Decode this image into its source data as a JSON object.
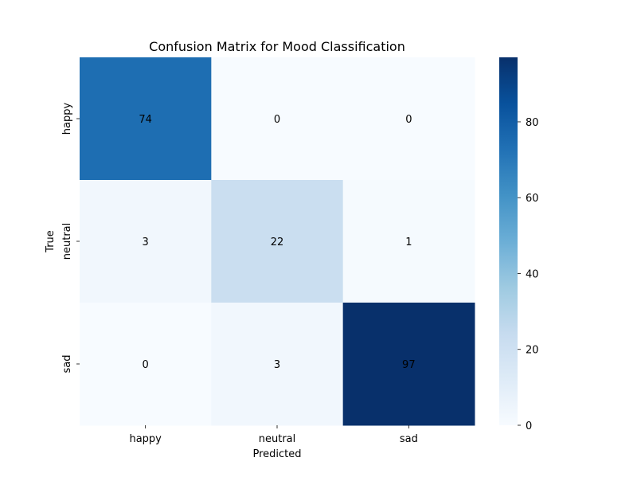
{
  "chart_data": {
    "type": "heatmap",
    "title": "Confusion Matrix for Mood Classification",
    "xlabel": "Predicted",
    "ylabel": "True",
    "x_categories": [
      "happy",
      "neutral",
      "sad"
    ],
    "y_categories": [
      "happy",
      "neutral",
      "sad"
    ],
    "values": [
      [
        74,
        0,
        0
      ],
      [
        3,
        22,
        1
      ],
      [
        0,
        3,
        97
      ]
    ],
    "colorbar": {
      "vmin": 0,
      "vmax": 97,
      "ticks": [
        0,
        20,
        40,
        60,
        80
      ],
      "colormap": "Blues"
    },
    "colors": {
      "low": "#f7fbff",
      "high": "#08306b",
      "text_dark": "#262626",
      "text_light": "#ffffff"
    }
  }
}
